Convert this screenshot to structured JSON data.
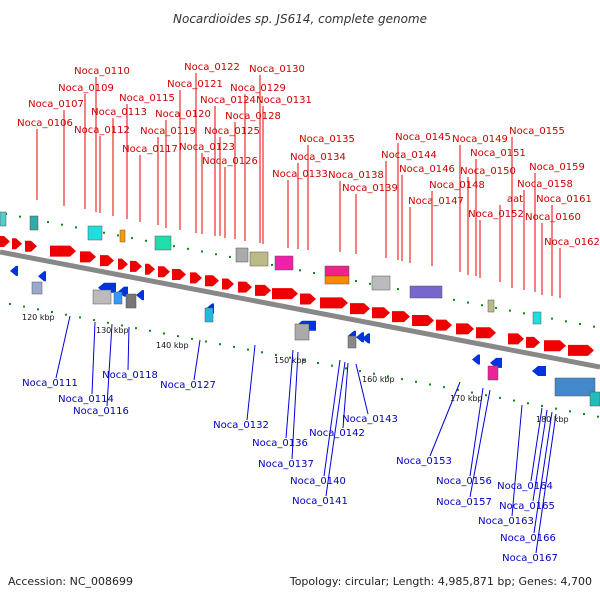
{
  "title": "Nocardioides sp. JS614, complete genome",
  "footer": {
    "accession": "Accession: NC_008699",
    "topology": "Topology: circular; Length: 4,985,871 bp; Genes: 4,700"
  },
  "colors": {
    "forward": "#dd0000",
    "reverse": "#0000cc",
    "backbone": "#888888",
    "tick": "#118811"
  },
  "kbp_labels": [
    "120 kbp",
    "130 kbp",
    "140 kbp",
    "150 kbp",
    "160 kbp",
    "170 kbp",
    "180 kbp"
  ],
  "forward_genes": [
    "Noca_0106",
    "Noca_0107",
    "Noca_0109",
    "Noca_0110",
    "Noca_0112",
    "Noca_0113",
    "Noca_0115",
    "Noca_0117",
    "Noca_0119",
    "Noca_0120",
    "Noca_0121",
    "Noca_0122",
    "Noca_0123",
    "Noca_0124",
    "Noca_0125",
    "Noca_0126",
    "Noca_0128",
    "Noca_0129",
    "Noca_0130",
    "Noca_0131",
    "Noca_0133",
    "Noca_0134",
    "Noca_0135",
    "Noca_0138",
    "Noca_0139",
    "Noca_0144",
    "Noca_0145",
    "Noca_0146",
    "Noca_0147",
    "Noca_0148",
    "Noca_0149",
    "Noca_0150",
    "Noca_0151",
    "Noca_0152",
    "aat",
    "Noca_0155",
    "Noca_0158",
    "Noca_0159",
    "Noca_0160",
    "Noca_0161",
    "Noca_0162"
  ],
  "reverse_genes": [
    "Noca_0111",
    "Noca_0114",
    "Noca_0116",
    "Noca_0118",
    "Noca_0127",
    "Noca_0132",
    "Noca_0136",
    "Noca_0137",
    "Noca_0140",
    "Noca_0141",
    "Noca_0142",
    "Noca_0143",
    "Noca_0153",
    "Noca_0156",
    "Noca_0157",
    "Noca_0163",
    "Noca_0164",
    "Noca_0165",
    "Noca_0166",
    "Noca_0167"
  ]
}
